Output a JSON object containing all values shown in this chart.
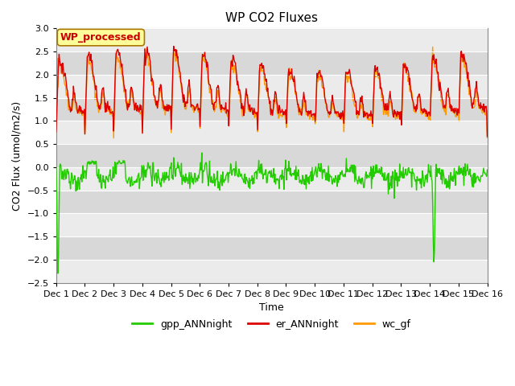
{
  "title": "WP CO2 Fluxes",
  "xlabel": "Time",
  "ylabel": "CO2 Flux (umol/m2/s)",
  "ylim": [
    -2.5,
    3.0
  ],
  "yticks": [
    -2.5,
    -2.0,
    -1.5,
    -1.0,
    -0.5,
    0.0,
    0.5,
    1.0,
    1.5,
    2.0,
    2.5,
    3.0
  ],
  "n_days": 15,
  "n_per_day": 48,
  "xtick_labels": [
    "Dec 1",
    "Dec 2",
    "Dec 3",
    "Dec 4",
    "Dec 5",
    "Dec 6",
    "Dec 7",
    "Dec 8",
    "Dec 9",
    "Dec 10",
    "Dec 11",
    "Dec 12",
    "Dec 13",
    "Dec 14",
    "Dec 15",
    "Dec 16"
  ],
  "colors": {
    "gpp_ANNnight": "#22cc00",
    "er_ANNnight": "#dd0000",
    "wc_gf": "#ff9900"
  },
  "legend_labels": [
    "gpp_ANNnight",
    "er_ANNnight",
    "wc_gf"
  ],
  "annotation_text": "WP_processed",
  "annotation_color": "#cc0000",
  "annotation_bg": "#ffff99",
  "annotation_border": "#aa7700",
  "band_light": "#ebebeb",
  "band_dark": "#d8d8d8",
  "title_fontsize": 11,
  "axis_fontsize": 9,
  "tick_fontsize": 8,
  "legend_fontsize": 9,
  "line_width": 1.0
}
